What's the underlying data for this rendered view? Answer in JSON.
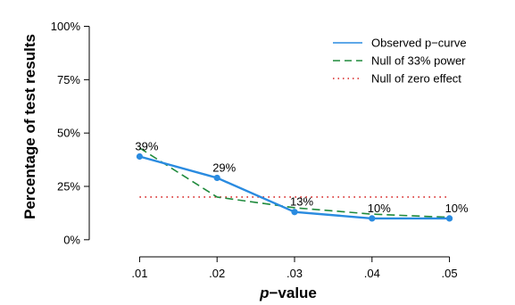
{
  "chart_data": {
    "type": "line",
    "title": "",
    "xlabel": {
      "italic": "p",
      "rest": "−value"
    },
    "ylabel": "Percentage of test results",
    "categories": [
      ".01",
      ".02",
      ".03",
      ".04",
      ".05"
    ],
    "x": [
      0.01,
      0.02,
      0.03,
      0.04,
      0.05
    ],
    "xlim": [
      0.0035,
      0.0565
    ],
    "ylim": [
      -3,
      109
    ],
    "yticks": [
      0,
      25,
      50,
      75,
      100
    ],
    "ytick_labels": [
      "0%",
      "25%",
      "50%",
      "75%",
      "100%"
    ],
    "grid": false,
    "legend_position": "top-right",
    "series": [
      {
        "name": "Observed p−curve",
        "style": "solid",
        "color": "#2a8be0",
        "markers": true,
        "values": [
          39,
          29,
          13,
          10,
          10
        ],
        "data_labels": [
          "39%",
          "29%",
          "13%",
          "10%",
          "10%"
        ]
      },
      {
        "name": "Null of 33% power",
        "style": "dashed",
        "color": "#1f8a3c",
        "markers": false,
        "values": [
          43,
          20,
          15,
          12,
          10.5
        ]
      },
      {
        "name": "Null of zero effect",
        "style": "dotted",
        "color": "#d62020",
        "markers": false,
        "values": [
          20,
          20,
          20,
          20,
          20
        ]
      }
    ]
  }
}
